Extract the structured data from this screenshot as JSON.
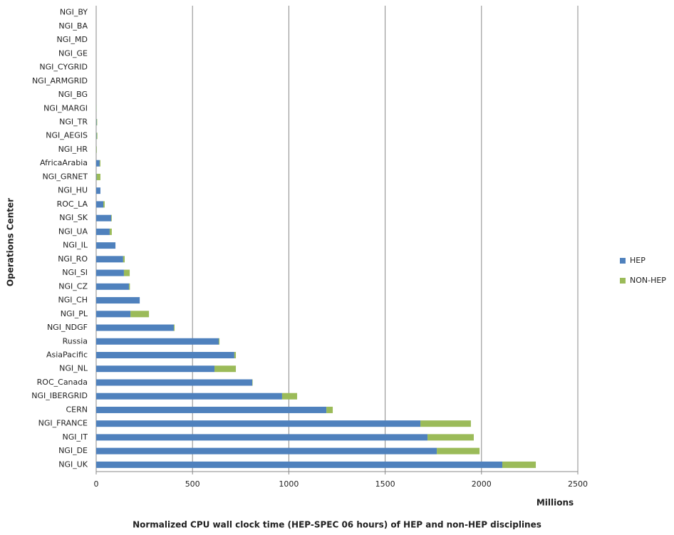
{
  "chart_data": {
    "type": "stacked-barh",
    "x_label": "Normalized CPU wall clock time (HEP-SPEC 06 hours) of HEP and non-HEP disciplines",
    "x_unit_label": "Millions",
    "y_label": "Operations Center",
    "categories": [
      "NGI_BY",
      "NGI_BA",
      "NGI_MD",
      "NGI_GE",
      "NGI_CYGRID",
      "NGI_ARMGRID",
      "NGI_BG",
      "NGI_MARGI",
      "NGI_TR",
      "NGI_AEGIS",
      "NGI_HR",
      "AfricaArabia",
      "NGI_GRNET",
      "NGI_HU",
      "ROC_LA",
      "NGI_SK",
      "NGI_UA",
      "NGI_IL",
      "NGI_RO",
      "NGI_SI",
      "NGI_CZ",
      "NGI_CH",
      "NGI_PL",
      "NGI_NDGF",
      "Russia",
      "AsiaPacific",
      "NGI_NL",
      "ROC_Canada",
      "NGI_IBERGRID",
      "CERN",
      "NGI_FRANCE",
      "NGI_IT",
      "NGI_DE",
      "NGI_UK"
    ],
    "series": [
      {
        "name": "HEP",
        "color": "#4f81bd",
        "values": [
          0,
          0,
          0,
          0,
          0,
          0,
          0,
          1,
          2,
          2,
          1,
          18,
          2,
          22,
          37,
          78,
          70,
          100,
          140,
          144,
          170,
          226,
          178,
          403,
          636,
          717,
          614,
          810,
          965,
          1195,
          1683,
          1720,
          1768,
          2108
        ]
      },
      {
        "name": "NON-HEP",
        "color": "#9bbb59",
        "values": [
          0,
          0,
          0,
          0,
          0,
          0,
          0,
          1,
          3,
          4,
          2,
          4,
          20,
          0,
          7,
          3,
          11,
          0,
          8,
          30,
          5,
          0,
          96,
          4,
          4,
          8,
          111,
          2,
          78,
          33,
          262,
          240,
          222,
          174
        ]
      }
    ],
    "xlim": [
      0,
      2500
    ],
    "xticks": [
      0,
      500,
      1000,
      1500,
      2000,
      2500
    ],
    "grid": true,
    "legend": "right"
  }
}
